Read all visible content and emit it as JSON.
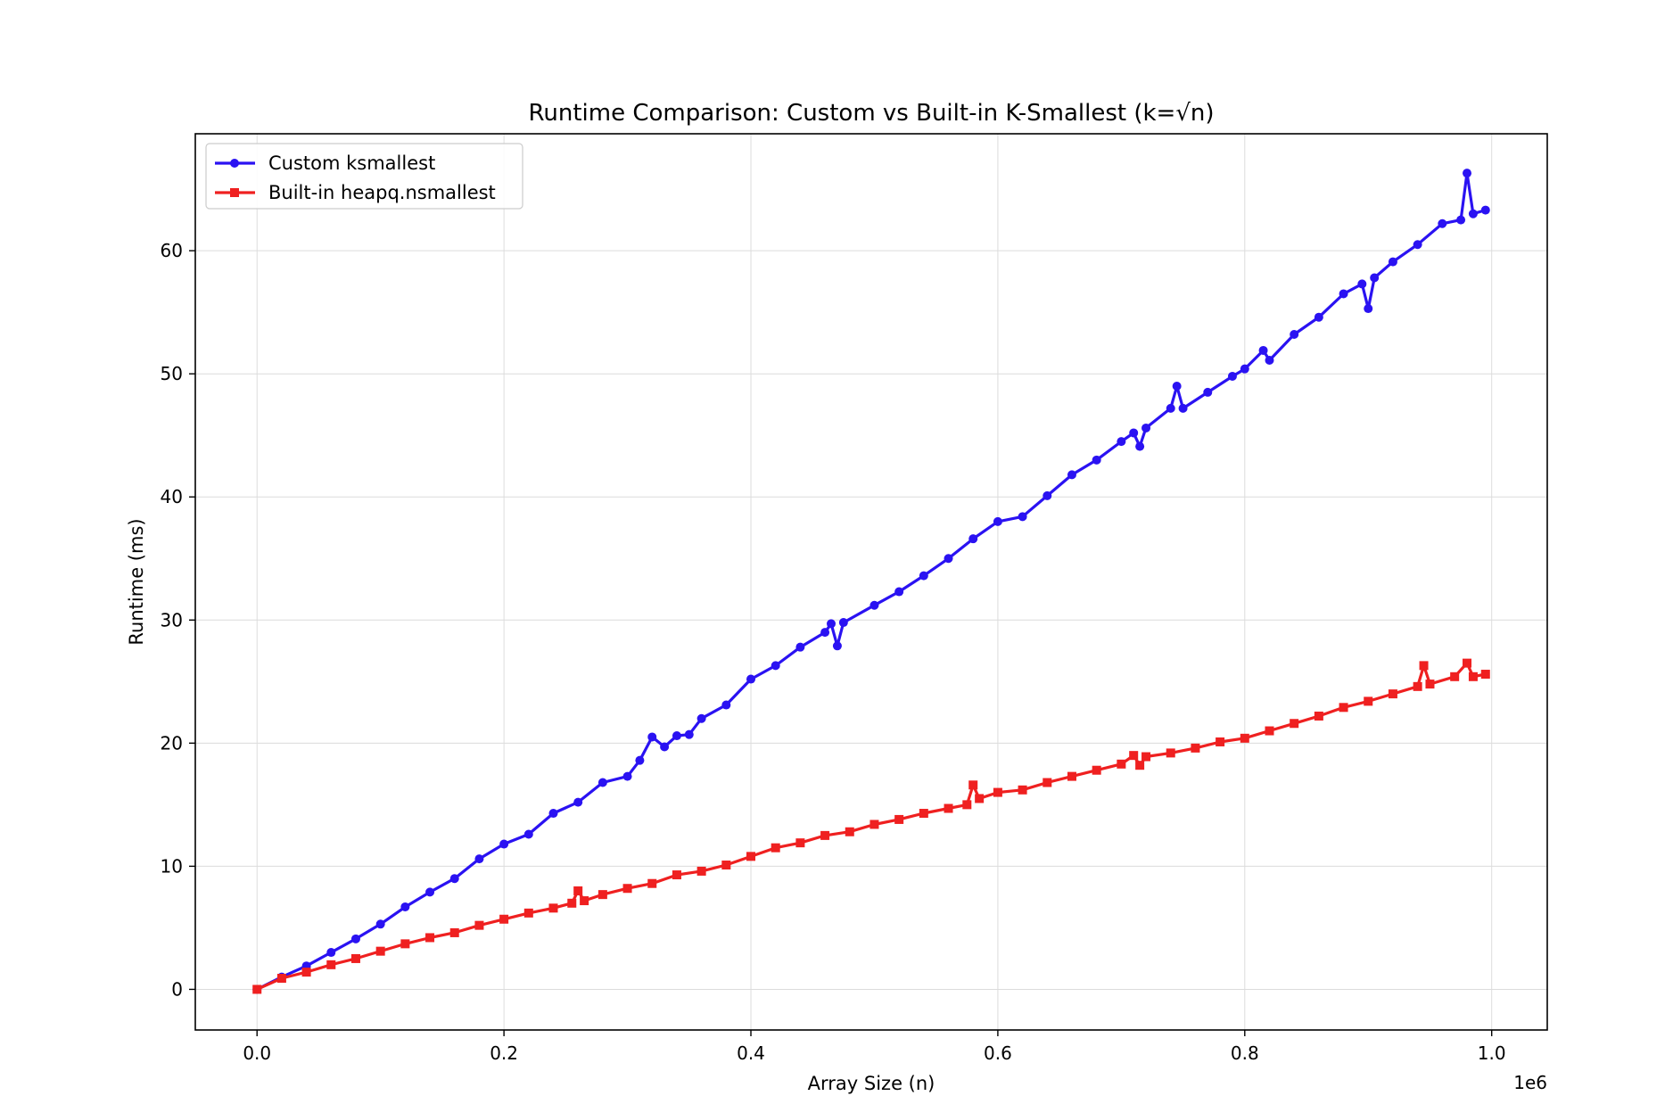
{
  "chart_data": {
    "type": "line",
    "title": "Runtime Comparison: Custom vs Built-in K-Smallest (k=√n)",
    "xlabel": "Array Size (n)",
    "ylabel": "Runtime (ms)",
    "x_offset_label": "1e6",
    "xlim": [
      -50000,
      1045000
    ],
    "ylim": [
      -3.3,
      69.5
    ],
    "xticks": [
      0,
      200000,
      400000,
      600000,
      800000,
      1000000
    ],
    "xtick_labels": [
      "0.0",
      "0.2",
      "0.4",
      "0.6",
      "0.8",
      "1.0"
    ],
    "yticks": [
      0,
      10,
      20,
      30,
      40,
      50,
      60
    ],
    "ytick_labels": [
      "0",
      "10",
      "20",
      "30",
      "40",
      "50",
      "60"
    ],
    "grid": true,
    "legend_position": "top-left",
    "series": [
      {
        "name": "Custom ksmallest",
        "color": "#2a12f2",
        "marker": "circle",
        "points": [
          [
            0,
            0.0
          ],
          [
            20000,
            1.0
          ],
          [
            40000,
            1.9
          ],
          [
            60000,
            3.0
          ],
          [
            80000,
            4.1
          ],
          [
            100000,
            5.3
          ],
          [
            120000,
            6.7
          ],
          [
            140000,
            7.9
          ],
          [
            160000,
            9.0
          ],
          [
            180000,
            10.6
          ],
          [
            200000,
            11.8
          ],
          [
            220000,
            12.6
          ],
          [
            240000,
            14.3
          ],
          [
            260000,
            15.2
          ],
          [
            280000,
            16.8
          ],
          [
            300000,
            17.3
          ],
          [
            310000,
            18.6
          ],
          [
            320000,
            20.5
          ],
          [
            330000,
            19.7
          ],
          [
            340000,
            20.6
          ],
          [
            350000,
            20.7
          ],
          [
            360000,
            22.0
          ],
          [
            380000,
            23.1
          ],
          [
            400000,
            25.2
          ],
          [
            420000,
            26.3
          ],
          [
            440000,
            27.8
          ],
          [
            460000,
            29.0
          ],
          [
            465000,
            29.7
          ],
          [
            470000,
            27.9
          ],
          [
            475000,
            29.8
          ],
          [
            500000,
            31.2
          ],
          [
            520000,
            32.3
          ],
          [
            540000,
            33.6
          ],
          [
            560000,
            35.0
          ],
          [
            580000,
            36.6
          ],
          [
            600000,
            38.0
          ],
          [
            620000,
            38.4
          ],
          [
            640000,
            40.1
          ],
          [
            660000,
            41.8
          ],
          [
            680000,
            43.0
          ],
          [
            700000,
            44.5
          ],
          [
            710000,
            45.2
          ],
          [
            715000,
            44.1
          ],
          [
            720000,
            45.6
          ],
          [
            740000,
            47.2
          ],
          [
            745000,
            49.0
          ],
          [
            750000,
            47.2
          ],
          [
            770000,
            48.5
          ],
          [
            790000,
            49.8
          ],
          [
            800000,
            50.4
          ],
          [
            815000,
            51.9
          ],
          [
            820000,
            51.1
          ],
          [
            840000,
            53.2
          ],
          [
            860000,
            54.6
          ],
          [
            880000,
            56.5
          ],
          [
            895000,
            57.3
          ],
          [
            900000,
            55.3
          ],
          [
            905000,
            57.8
          ],
          [
            920000,
            59.1
          ],
          [
            940000,
            60.5
          ],
          [
            960000,
            62.2
          ],
          [
            975000,
            62.5
          ],
          [
            980000,
            66.3
          ],
          [
            985000,
            63.0
          ],
          [
            995000,
            63.3
          ]
        ]
      },
      {
        "name": "Built-in heapq.nsmallest",
        "color": "#ef2020",
        "marker": "square",
        "points": [
          [
            0,
            0.0
          ],
          [
            20000,
            0.9
          ],
          [
            40000,
            1.4
          ],
          [
            60000,
            2.0
          ],
          [
            80000,
            2.5
          ],
          [
            100000,
            3.1
          ],
          [
            120000,
            3.7
          ],
          [
            140000,
            4.2
          ],
          [
            160000,
            4.6
          ],
          [
            180000,
            5.2
          ],
          [
            200000,
            5.7
          ],
          [
            220000,
            6.2
          ],
          [
            240000,
            6.6
          ],
          [
            255000,
            7.0
          ],
          [
            260000,
            8.0
          ],
          [
            265000,
            7.2
          ],
          [
            280000,
            7.7
          ],
          [
            300000,
            8.2
          ],
          [
            320000,
            8.6
          ],
          [
            340000,
            9.3
          ],
          [
            360000,
            9.6
          ],
          [
            380000,
            10.1
          ],
          [
            400000,
            10.8
          ],
          [
            420000,
            11.5
          ],
          [
            440000,
            11.9
          ],
          [
            460000,
            12.5
          ],
          [
            480000,
            12.8
          ],
          [
            500000,
            13.4
          ],
          [
            520000,
            13.8
          ],
          [
            540000,
            14.3
          ],
          [
            560000,
            14.7
          ],
          [
            575000,
            15.0
          ],
          [
            580000,
            16.6
          ],
          [
            585000,
            15.5
          ],
          [
            600000,
            16.0
          ],
          [
            620000,
            16.2
          ],
          [
            640000,
            16.8
          ],
          [
            660000,
            17.3
          ],
          [
            680000,
            17.8
          ],
          [
            700000,
            18.3
          ],
          [
            710000,
            19.0
          ],
          [
            715000,
            18.2
          ],
          [
            720000,
            18.9
          ],
          [
            740000,
            19.2
          ],
          [
            760000,
            19.6
          ],
          [
            780000,
            20.1
          ],
          [
            800000,
            20.4
          ],
          [
            820000,
            21.0
          ],
          [
            840000,
            21.6
          ],
          [
            860000,
            22.2
          ],
          [
            880000,
            22.9
          ],
          [
            900000,
            23.4
          ],
          [
            920000,
            24.0
          ],
          [
            940000,
            24.6
          ],
          [
            945000,
            26.3
          ],
          [
            950000,
            24.8
          ],
          [
            970000,
            25.4
          ],
          [
            980000,
            26.5
          ],
          [
            985000,
            25.4
          ],
          [
            995000,
            25.6
          ]
        ]
      }
    ]
  }
}
